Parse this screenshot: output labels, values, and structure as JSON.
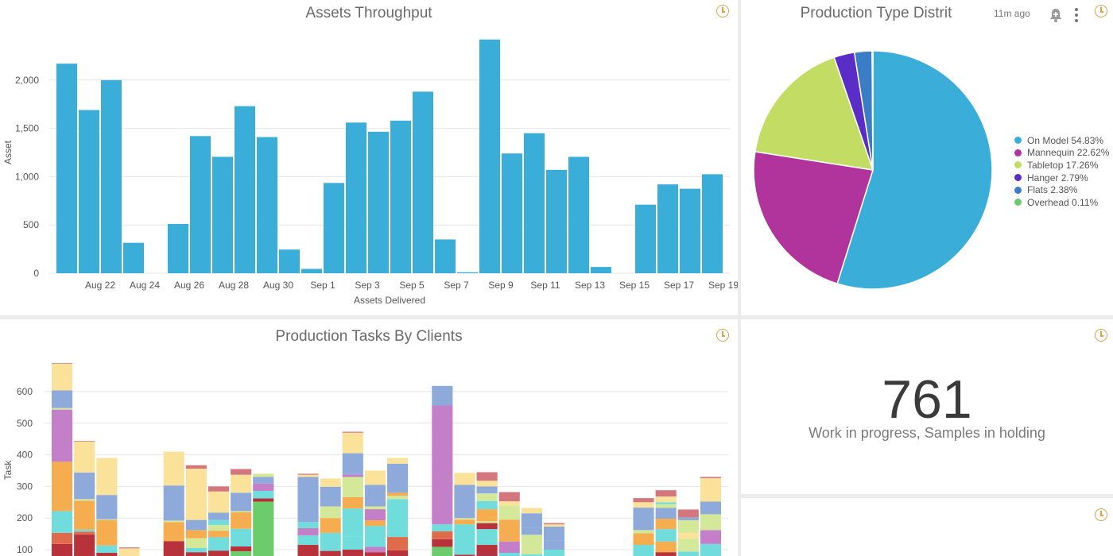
{
  "throughput": {
    "title": "Assets Throughput",
    "chart_data": {
      "type": "bar",
      "xlabel": "Assets Delivered",
      "ylabel": "Asset",
      "ylim": [
        0,
        2500
      ],
      "yticks": [
        "0",
        "500",
        "1,000",
        "1,500",
        "2,000"
      ],
      "grid": "horizontal",
      "tick_labels": [
        "Aug 22",
        "Aug 24",
        "Aug 26",
        "Aug 28",
        "Aug 30",
        "Sep 1",
        "Sep 3",
        "Sep 5",
        "Sep 7",
        "Sep 9",
        "Sep 11",
        "Sep 13",
        "Sep 15",
        "Sep 17",
        "Sep 19"
      ],
      "color": "#3aaed8",
      "values": [
        2170,
        1690,
        2000,
        315,
        0,
        510,
        1420,
        1205,
        1730,
        1410,
        245,
        45,
        935,
        1560,
        1465,
        1580,
        1880,
        350,
        10,
        2420,
        1240,
        1450,
        1070,
        1205,
        65,
        0,
        710,
        920,
        875,
        1025
      ]
    }
  },
  "distribution": {
    "title": "Production Type Distrit",
    "timestamp": "11m ago",
    "icons": {
      "bell": "bell-plus-icon",
      "more": "more-vertical-icon",
      "clock": "clock-icon"
    },
    "chart_data": {
      "type": "pie",
      "legend_position": "right",
      "slices": [
        {
          "label": "On Model 54.83%",
          "value": 54.83,
          "color": "#3aaed8"
        },
        {
          "label": "Mannequin 22.62%",
          "value": 22.62,
          "color": "#b0349b"
        },
        {
          "label": "Tabletop 17.26%",
          "value": 17.26,
          "color": "#c2dc64"
        },
        {
          "label": "Hanger 2.79%",
          "value": 2.79,
          "color": "#5b2dc7"
        },
        {
          "label": "Flats 2.38%",
          "value": 2.38,
          "color": "#3a7cc6"
        },
        {
          "label": "Overhead 0.11%",
          "value": 0.11,
          "color": "#6ccb6a"
        }
      ]
    }
  },
  "tasks": {
    "title": "Production Tasks By Clients",
    "chart_data": {
      "type": "bar",
      "stacked": true,
      "ylabel": "Task",
      "ylim": [
        65,
        690
      ],
      "yticks": [
        "100",
        "200",
        "300",
        "400",
        "500",
        "600"
      ],
      "grid": "horizontal",
      "colors": [
        "#b8323b",
        "#e06b4a",
        "#70dcdc",
        "#f6ad50",
        "#c47fc9",
        "#8eaadb",
        "#fbe29a",
        "#d4767d",
        "#d4e89a",
        "#6ccb6a",
        "#4a2db0"
      ],
      "bars": [
        [
          {
            "v": 118,
            "c": 0
          },
          {
            "v": 153,
            "c": 1
          },
          {
            "v": 222,
            "c": 2
          },
          {
            "v": 378,
            "c": 3
          },
          {
            "v": 543,
            "c": 4
          },
          {
            "v": 548,
            "c": 8
          },
          {
            "v": 604,
            "c": 5
          },
          {
            "v": 688,
            "c": 6
          },
          {
            "v": 690,
            "c": 7
          }
        ],
        [
          {
            "v": 148,
            "c": 0
          },
          {
            "v": 157,
            "c": 1
          },
          {
            "v": 163,
            "c": 2
          },
          {
            "v": 255,
            "c": 3
          },
          {
            "v": 260,
            "c": 8
          },
          {
            "v": 344,
            "c": 5
          },
          {
            "v": 442,
            "c": 6
          },
          {
            "v": 444,
            "c": 7
          }
        ],
        [
          {
            "v": 90,
            "c": 0
          },
          {
            "v": 113,
            "c": 2
          },
          {
            "v": 193,
            "c": 3
          },
          {
            "v": 196,
            "c": 8
          },
          {
            "v": 273,
            "c": 5
          },
          {
            "v": 390,
            "c": 6
          }
        ],
        [
          {
            "v": 104,
            "c": 6
          },
          {
            "v": 107,
            "c": 7
          }
        ],
        [],
        [
          {
            "v": 127,
            "c": 0
          },
          {
            "v": 187,
            "c": 3
          },
          {
            "v": 192,
            "c": 8
          },
          {
            "v": 303,
            "c": 5
          },
          {
            "v": 410,
            "c": 6
          }
        ],
        [
          {
            "v": 92,
            "c": 0
          },
          {
            "v": 105,
            "c": 2
          },
          {
            "v": 136,
            "c": 8
          },
          {
            "v": 162,
            "c": 3
          },
          {
            "v": 194,
            "c": 5
          },
          {
            "v": 356,
            "c": 6
          },
          {
            "v": 367,
            "c": 7
          }
        ],
        [
          {
            "v": 97,
            "c": 0
          },
          {
            "v": 139,
            "c": 2
          },
          {
            "v": 160,
            "c": 3
          },
          {
            "v": 178,
            "c": 8
          },
          {
            "v": 194,
            "c": 2
          },
          {
            "v": 217,
            "c": 5
          },
          {
            "v": 284,
            "c": 6
          },
          {
            "v": 300,
            "c": 7
          }
        ],
        [
          {
            "v": 95,
            "c": 9
          },
          {
            "v": 110,
            "c": 0
          },
          {
            "v": 166,
            "c": 2
          },
          {
            "v": 218,
            "c": 3
          },
          {
            "v": 222,
            "c": 8
          },
          {
            "v": 280,
            "c": 5
          },
          {
            "v": 337,
            "c": 6
          },
          {
            "v": 355,
            "c": 7
          }
        ],
        [
          {
            "v": 252,
            "c": 9
          },
          {
            "v": 262,
            "c": 0
          },
          {
            "v": 286,
            "c": 2
          },
          {
            "v": 309,
            "c": 4
          },
          {
            "v": 330,
            "c": 5
          },
          {
            "v": 340,
            "c": 8
          }
        ],
        [],
        [
          {
            "v": 115,
            "c": 0
          },
          {
            "v": 145,
            "c": 2
          },
          {
            "v": 168,
            "c": 4
          },
          {
            "v": 187,
            "c": 2
          },
          {
            "v": 330,
            "c": 5
          },
          {
            "v": 337,
            "c": 6
          },
          {
            "v": 340,
            "c": 7
          }
        ],
        [
          {
            "v": 96,
            "c": 0
          },
          {
            "v": 153,
            "c": 2
          },
          {
            "v": 200,
            "c": 3
          },
          {
            "v": 237,
            "c": 8
          },
          {
            "v": 299,
            "c": 5
          },
          {
            "v": 325,
            "c": 6
          }
        ],
        [
          {
            "v": 100,
            "c": 0
          },
          {
            "v": 142,
            "c": 2
          },
          {
            "v": 230,
            "c": 2
          },
          {
            "v": 266,
            "c": 3
          },
          {
            "v": 330,
            "c": 8
          },
          {
            "v": 338,
            "c": 4
          },
          {
            "v": 405,
            "c": 5
          },
          {
            "v": 470,
            "c": 6
          },
          {
            "v": 473,
            "c": 7
          }
        ],
        [
          {
            "v": 92,
            "c": 0
          },
          {
            "v": 109,
            "c": 4
          },
          {
            "v": 175,
            "c": 2
          },
          {
            "v": 193,
            "c": 3
          },
          {
            "v": 228,
            "c": 4
          },
          {
            "v": 237,
            "c": 8
          },
          {
            "v": 305,
            "c": 5
          },
          {
            "v": 350,
            "c": 6
          }
        ],
        [
          {
            "v": 98,
            "c": 0
          },
          {
            "v": 140,
            "c": 1
          },
          {
            "v": 260,
            "c": 2
          },
          {
            "v": 270,
            "c": 8
          },
          {
            "v": 280,
            "c": 3
          },
          {
            "v": 372,
            "c": 5
          },
          {
            "v": 390,
            "c": 6
          }
        ],
        [],
        [
          {
            "v": 109,
            "c": 9
          },
          {
            "v": 133,
            "c": 0
          },
          {
            "v": 158,
            "c": 1
          },
          {
            "v": 180,
            "c": 2
          },
          {
            "v": 556,
            "c": 4
          },
          {
            "v": 618,
            "c": 5
          }
        ],
        [
          {
            "v": 84,
            "c": 0
          },
          {
            "v": 180,
            "c": 2
          },
          {
            "v": 195,
            "c": 3
          },
          {
            "v": 200,
            "c": 8
          },
          {
            "v": 305,
            "c": 5
          },
          {
            "v": 343,
            "c": 6
          }
        ],
        [
          {
            "v": 81,
            "c": 10
          },
          {
            "v": 115,
            "c": 0
          },
          {
            "v": 165,
            "c": 2
          },
          {
            "v": 184,
            "c": 0
          },
          {
            "v": 190,
            "c": 8
          },
          {
            "v": 228,
            "c": 3
          },
          {
            "v": 254,
            "c": 2
          },
          {
            "v": 278,
            "c": 8
          },
          {
            "v": 300,
            "c": 5
          },
          {
            "v": 318,
            "c": 6
          },
          {
            "v": 345,
            "c": 7
          }
        ],
        [
          {
            "v": 90,
            "c": 2
          },
          {
            "v": 126,
            "c": 4
          },
          {
            "v": 195,
            "c": 3
          },
          {
            "v": 240,
            "c": 8
          },
          {
            "v": 253,
            "c": 6
          },
          {
            "v": 282,
            "c": 7
          }
        ],
        [
          {
            "v": 85,
            "c": 2
          },
          {
            "v": 147,
            "c": 8
          },
          {
            "v": 170,
            "c": 5
          },
          {
            "v": 215,
            "c": 5
          },
          {
            "v": 232,
            "c": 6
          }
        ],
        [
          {
            "v": 100,
            "c": 2
          },
          {
            "v": 128,
            "c": 5
          },
          {
            "v": 173,
            "c": 5
          },
          {
            "v": 180,
            "c": 6
          },
          {
            "v": 184,
            "c": 7
          }
        ],
        [],
        [],
        [],
        [
          {
            "v": 115,
            "c": 2
          },
          {
            "v": 152,
            "c": 3
          },
          {
            "v": 162,
            "c": 8
          },
          {
            "v": 233,
            "c": 5
          },
          {
            "v": 250,
            "c": 6
          },
          {
            "v": 263,
            "c": 7
          }
        ],
        [
          {
            "v": 92,
            "c": 0
          },
          {
            "v": 126,
            "c": 3
          },
          {
            "v": 165,
            "c": 2
          },
          {
            "v": 198,
            "c": 3
          },
          {
            "v": 232,
            "c": 5
          },
          {
            "v": 244,
            "c": 8
          },
          {
            "v": 250,
            "c": 2
          },
          {
            "v": 268,
            "c": 6
          },
          {
            "v": 288,
            "c": 7
          }
        ],
        [
          {
            "v": 94,
            "c": 2
          },
          {
            "v": 135,
            "c": 8
          },
          {
            "v": 154,
            "c": 6
          },
          {
            "v": 193,
            "c": 8
          },
          {
            "v": 202,
            "c": 5
          },
          {
            "v": 227,
            "c": 7
          }
        ],
        [
          {
            "v": 118,
            "c": 2
          },
          {
            "v": 162,
            "c": 4
          },
          {
            "v": 212,
            "c": 8
          },
          {
            "v": 252,
            "c": 5
          },
          {
            "v": 326,
            "c": 6
          },
          {
            "v": 330,
            "c": 7
          }
        ]
      ]
    }
  },
  "wip": {
    "value": "761",
    "label": "Work in progress, Samples in holding"
  }
}
